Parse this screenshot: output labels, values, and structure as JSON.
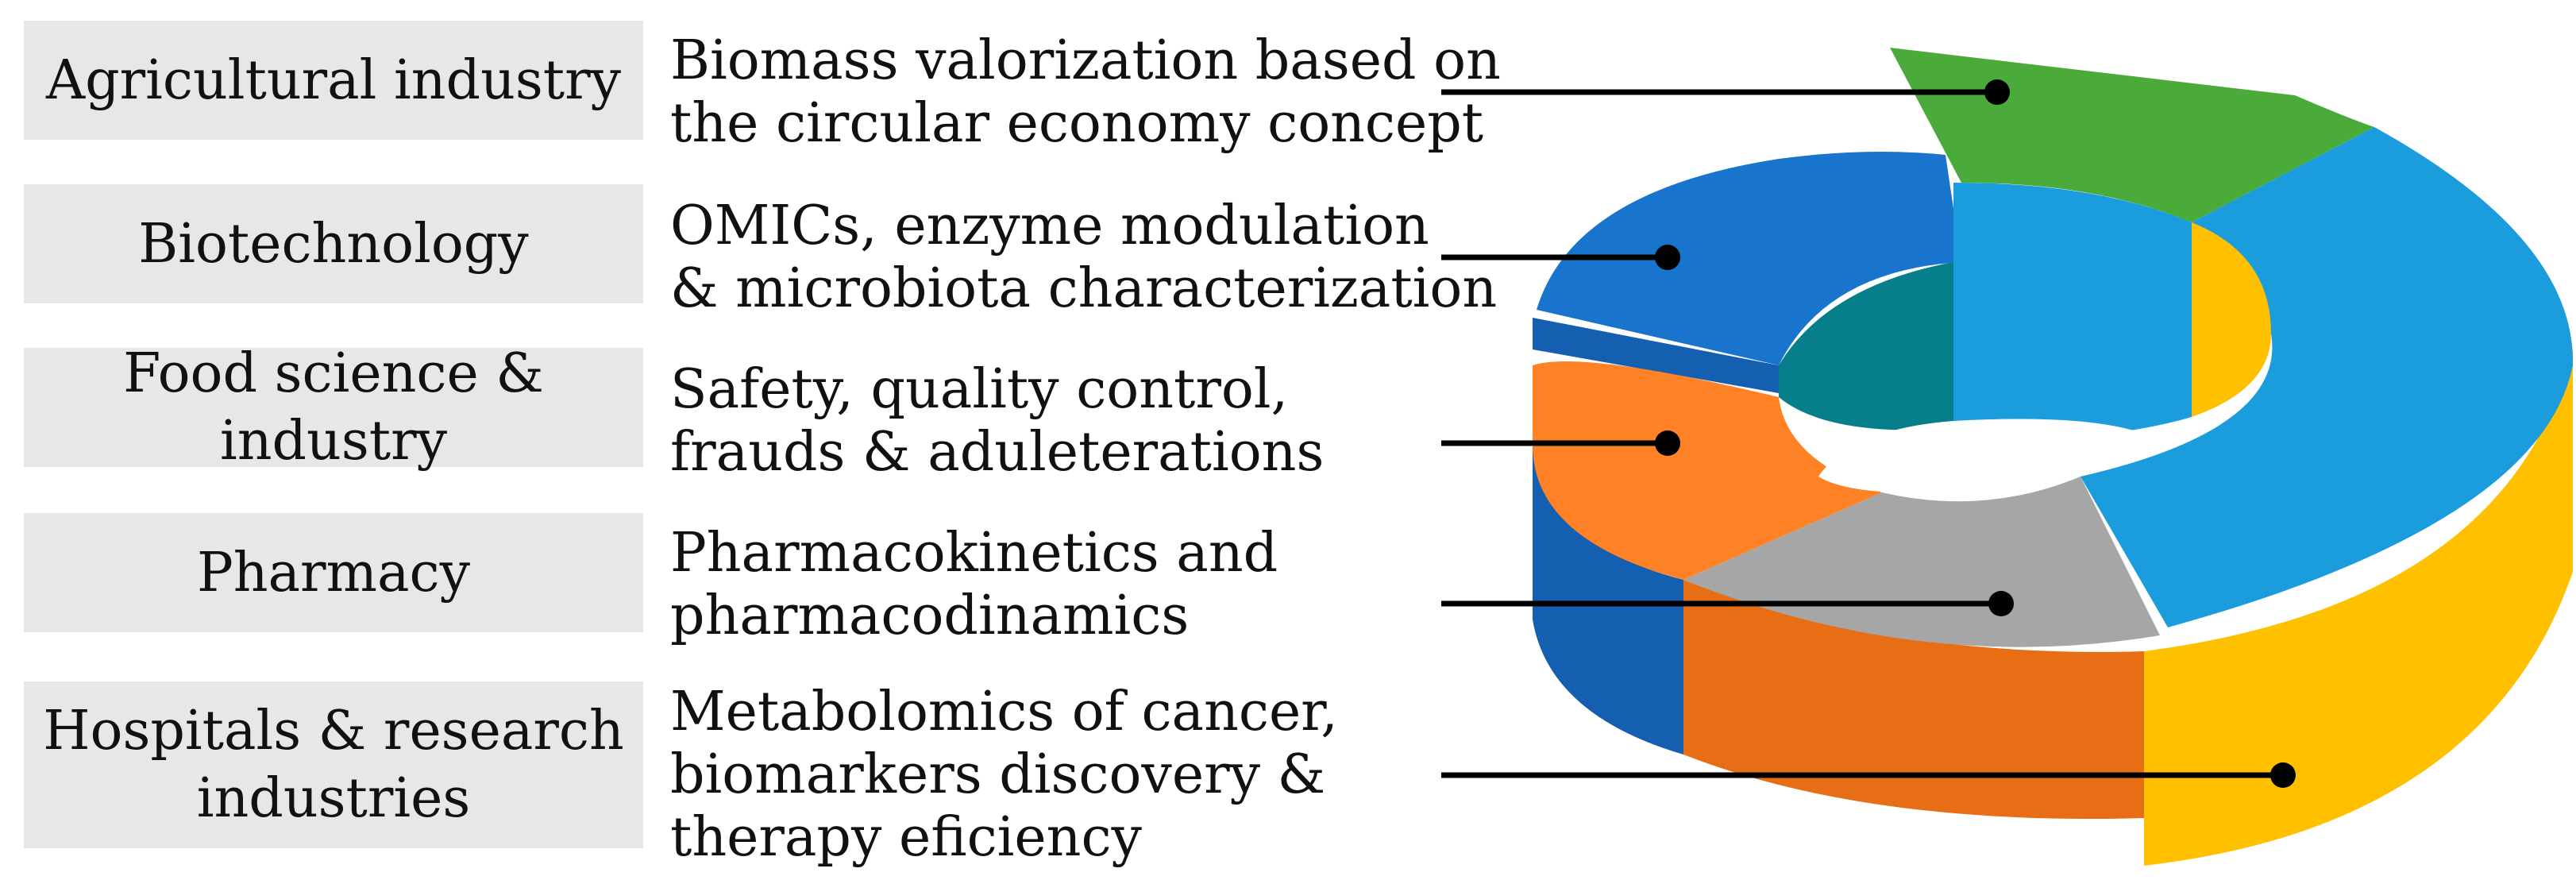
{
  "rows": [
    {
      "category": [
        "Agricultural industry"
      ],
      "application": [
        "Biomass valorization based on",
        "the circular economy concept"
      ],
      "color": "#4aab3a"
    },
    {
      "category": [
        "Biotechnology"
      ],
      "application": [
        "OMICs, enzyme modulation",
        "& microbiota characterization"
      ],
      "color": "#1874cc"
    },
    {
      "category": [
        "Food science & industry"
      ],
      "application": [
        "Safety, quality control,",
        "frauds & aduleterations"
      ],
      "color": "#ff8226"
    },
    {
      "category": [
        "Pharmacy"
      ],
      "application": [
        "Pharmacokinetics and",
        "pharmacodinamics"
      ],
      "color": "#a6a6a6"
    },
    {
      "category": [
        "Hospitals & research",
        "industries"
      ],
      "application": [
        "Metabolomics of cancer,",
        "biomarkers discovery &",
        "therapy eficiency"
      ],
      "color": "#ffc000"
    }
  ],
  "ring_colors": {
    "top_blue": "#1b9cdc",
    "inner_teal": "#077f8a",
    "green_side": "#2f8a2a",
    "blue_side": "#155fb0",
    "orange_side": "#e86e15",
    "yellow_side": "#e0a800",
    "gray_side": "#8c8c8c"
  }
}
